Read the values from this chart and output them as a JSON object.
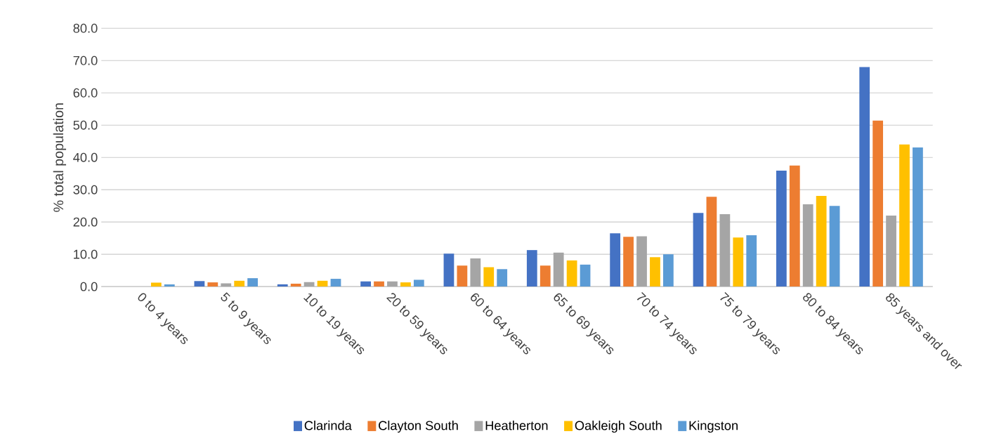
{
  "chart_data": {
    "type": "bar",
    "ylabel": "% total population",
    "categories": [
      "0 to 4 years",
      "5 to 9 years",
      "10 to 19 years",
      "20 to 59 years",
      "60 to 64 years",
      "65 to 69 years",
      "70 to 74 years",
      "75 to 79 years",
      "80 to 84 years",
      "85 years and over"
    ],
    "series": [
      {
        "name": "Clarinda",
        "color": "#4472c4",
        "values": [
          0,
          1.7,
          0.7,
          1.6,
          10.2,
          11.3,
          16.5,
          22.8,
          35.9,
          68.0
        ]
      },
      {
        "name": "Clayton South",
        "color": "#ed7d31",
        "values": [
          0,
          1.3,
          0.9,
          1.6,
          6.5,
          6.5,
          15.4,
          27.8,
          37.5,
          51.4
        ]
      },
      {
        "name": "Heatherton",
        "color": "#a5a5a5",
        "values": [
          0,
          1.0,
          1.4,
          1.6,
          8.7,
          10.5,
          15.6,
          22.4,
          25.5,
          22.0
        ]
      },
      {
        "name": "Oakleigh South",
        "color": "#ffc000",
        "values": [
          1.2,
          1.8,
          1.8,
          1.3,
          6.0,
          8.1,
          9.1,
          15.2,
          28.1,
          44.0
        ]
      },
      {
        "name": "Kingston",
        "color": "#5b9bd5",
        "values": [
          0.7,
          2.6,
          2.4,
          2.1,
          5.4,
          6.8,
          10.0,
          15.9,
          25.0,
          43.1
        ]
      }
    ],
    "ylim": [
      0,
      80
    ],
    "yticks": [
      {
        "value": 0,
        "label": "0.0"
      },
      {
        "value": 10,
        "label": "10.0"
      },
      {
        "value": 20,
        "label": "20.0"
      },
      {
        "value": 30,
        "label": "30.0"
      },
      {
        "value": 40,
        "label": "40.0"
      },
      {
        "value": 50,
        "label": "50.0"
      },
      {
        "value": 60,
        "label": "60.0"
      },
      {
        "value": 70,
        "label": "70.0"
      },
      {
        "value": 80,
        "label": "80.0"
      }
    ],
    "grid": "y",
    "legend": "bottom"
  }
}
